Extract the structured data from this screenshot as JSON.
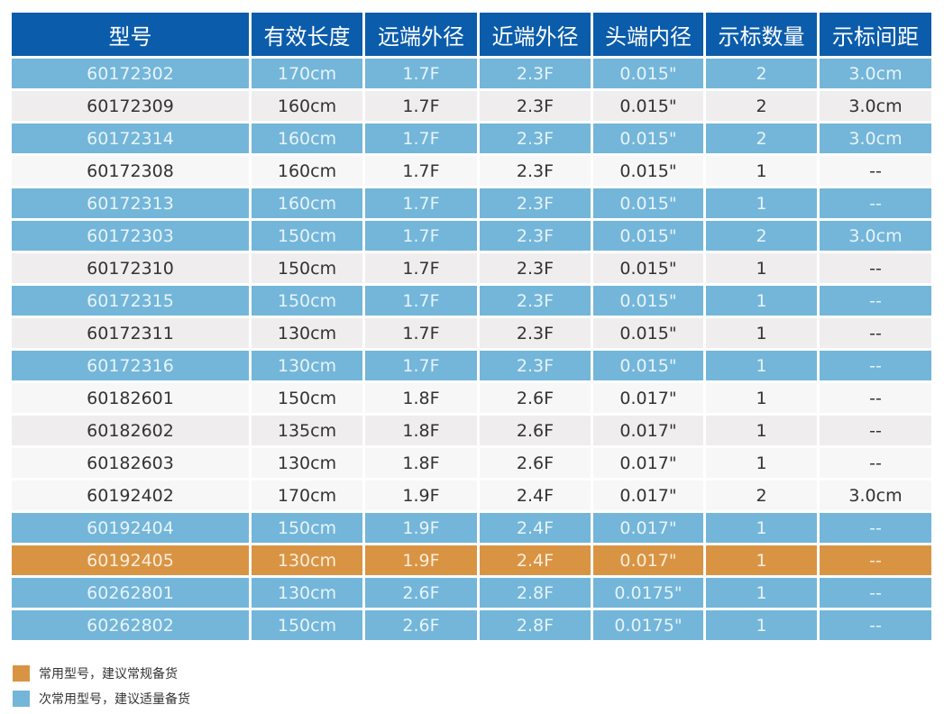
{
  "colors": {
    "header_bg": "#0b5cab",
    "row_gray": "#efedee",
    "row_white": "#f7f7f7",
    "highlight_blue": "#73b6d9",
    "highlight_orange": "#d99443"
  },
  "table": {
    "headers": [
      "型号",
      "有效长度",
      "远端外径",
      "近端外径",
      "头端内径",
      "示标数量",
      "示标间距"
    ],
    "rows": [
      {
        "style": "blue",
        "cells": [
          "60172302",
          "170cm",
          "1.7F",
          "2.3F",
          "0.015\"",
          "2",
          "3.0cm"
        ]
      },
      {
        "style": "gray",
        "cells": [
          "60172309",
          "160cm",
          "1.7F",
          "2.3F",
          "0.015\"",
          "2",
          "3.0cm"
        ]
      },
      {
        "style": "blue",
        "cells": [
          "60172314",
          "160cm",
          "1.7F",
          "2.3F",
          "0.015\"",
          "2",
          "3.0cm"
        ]
      },
      {
        "style": "white",
        "cells": [
          "60172308",
          "160cm",
          "1.7F",
          "2.3F",
          "0.015\"",
          "1",
          "--"
        ]
      },
      {
        "style": "blue",
        "cells": [
          "60172313",
          "160cm",
          "1.7F",
          "2.3F",
          "0.015\"",
          "1",
          "--"
        ]
      },
      {
        "style": "blue",
        "cells": [
          "60172303",
          "150cm",
          "1.7F",
          "2.3F",
          "0.015\"",
          "2",
          "3.0cm"
        ]
      },
      {
        "style": "gray",
        "cells": [
          "60172310",
          "150cm",
          "1.7F",
          "2.3F",
          "0.015\"",
          "1",
          "--"
        ]
      },
      {
        "style": "blue",
        "cells": [
          "60172315",
          "150cm",
          "1.7F",
          "2.3F",
          "0.015\"",
          "1",
          "--"
        ]
      },
      {
        "style": "gray",
        "cells": [
          "60172311",
          "130cm",
          "1.7F",
          "2.3F",
          "0.015\"",
          "1",
          "--"
        ]
      },
      {
        "style": "blue",
        "cells": [
          "60172316",
          "130cm",
          "1.7F",
          "2.3F",
          "0.015\"",
          "1",
          "--"
        ]
      },
      {
        "style": "white",
        "cells": [
          "60182601",
          "150cm",
          "1.8F",
          "2.6F",
          "0.017\"",
          "1",
          "--"
        ]
      },
      {
        "style": "gray",
        "cells": [
          "60182602",
          "135cm",
          "1.8F",
          "2.6F",
          "0.017\"",
          "1",
          "--"
        ]
      },
      {
        "style": "white",
        "cells": [
          "60182603",
          "130cm",
          "1.8F",
          "2.6F",
          "0.017\"",
          "1",
          "--"
        ]
      },
      {
        "style": "white",
        "cells": [
          "60192402",
          "170cm",
          "1.9F",
          "2.4F",
          "0.017\"",
          "2",
          "3.0cm"
        ]
      },
      {
        "style": "blue",
        "cells": [
          "60192404",
          "150cm",
          "1.9F",
          "2.4F",
          "0.017\"",
          "1",
          "--"
        ]
      },
      {
        "style": "orange",
        "cells": [
          "60192405",
          "130cm",
          "1.9F",
          "2.4F",
          "0.017\"",
          "1",
          "--"
        ]
      },
      {
        "style": "blue",
        "cells": [
          "60262801",
          "130cm",
          "2.6F",
          "2.8F",
          "0.0175\"",
          "1",
          "--"
        ]
      },
      {
        "style": "blue",
        "cells": [
          "60262802",
          "150cm",
          "2.6F",
          "2.8F",
          "0.0175\"",
          "1",
          "--"
        ]
      }
    ]
  },
  "legend": [
    {
      "color": "#d99443",
      "label": "常用型号，建议常规备货"
    },
    {
      "color": "#73b6d9",
      "label": "次常用型号，建议适量备货"
    }
  ]
}
